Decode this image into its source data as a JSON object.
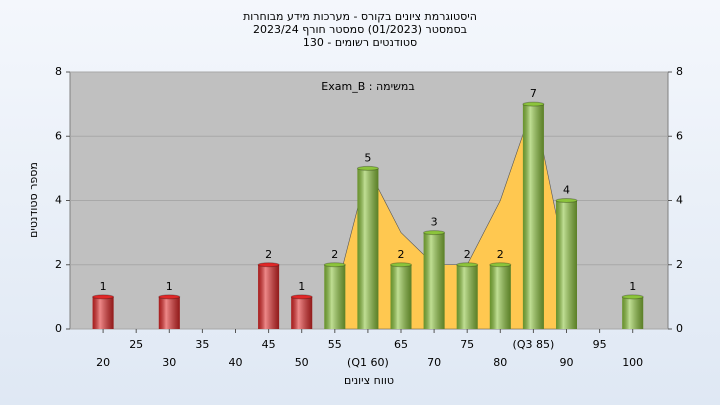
{
  "chart_data": {
    "type": "bar",
    "title": "היסטוגרמת ציונים בקורס - מערכות מידע מבוחרות",
    "subtitle": "בסמסטר (01/2023) סמסטר חורף 2023/24",
    "subtitle2": "סטודנטים רשומים - 130",
    "annotation": "במשימה : Exam_B",
    "x_label": "טווח ציונים",
    "y_label": "מספר סטודנטים",
    "categories": [
      "20",
      "25",
      "30",
      "35",
      "40",
      "45",
      "50",
      "55",
      "(Q1 60)",
      "65",
      "70",
      "75",
      "80",
      "(Q3 85)",
      "90",
      "95",
      "100"
    ],
    "values": [
      1,
      0,
      1,
      0,
      0,
      2,
      1,
      2,
      5,
      2,
      3,
      2,
      2,
      7,
      4,
      0,
      1
    ],
    "colors": [
      "#e02828",
      "#e02828",
      "#e02828",
      "#e02828",
      "#e02828",
      "#e02828",
      "#e02828",
      "#8cc43c",
      "#8cc43c",
      "#8cc43c",
      "#8cc43c",
      "#8cc43c",
      "#8cc43c",
      "#8cc43c",
      "#8cc43c",
      "#8cc43c",
      "#8cc43c"
    ],
    "area": {
      "color": "#ffc850",
      "values": [
        null,
        null,
        null,
        null,
        null,
        null,
        null,
        1,
        5,
        3,
        2,
        2,
        4,
        7,
        2,
        null,
        null
      ]
    },
    "ylim": [
      0,
      8
    ],
    "yticks": [
      0,
      2,
      4,
      6,
      8
    ],
    "grid": true
  }
}
